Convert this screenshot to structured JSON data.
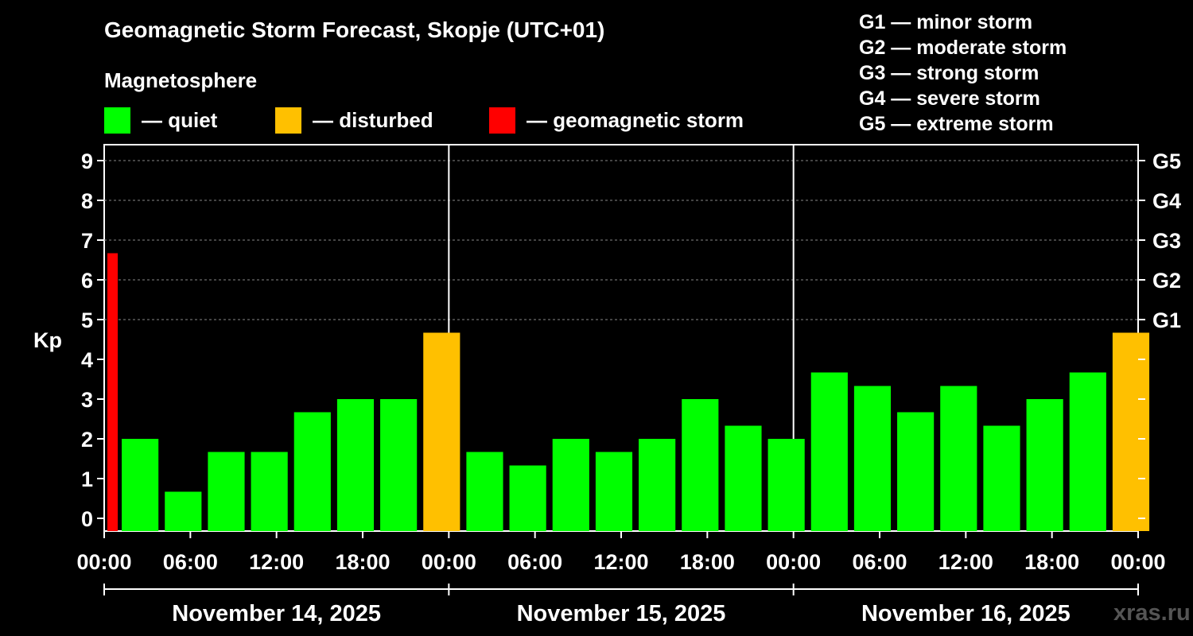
{
  "title": "Geomagnetic Storm Forecast, Skopje (UTC+01)",
  "magnetosphere": {
    "title": "Magnetosphere",
    "items": [
      {
        "label": "— quiet",
        "color": "#00ff00"
      },
      {
        "label": "— disturbed",
        "color": "#ffc000"
      },
      {
        "label": "— geomagnetic storm",
        "color": "#ff0000"
      }
    ]
  },
  "g_legend": [
    "G1 — minor storm",
    "G2 — moderate storm",
    "G3 — strong storm",
    "G4 — severe storm",
    "G5 — extreme storm"
  ],
  "watermark": "xras.ru",
  "chart_data": {
    "type": "bar",
    "ylabel": "Kp",
    "ylim": [
      0,
      9
    ],
    "y_ticks": [
      0,
      1,
      2,
      3,
      4,
      5,
      6,
      7,
      8,
      9
    ],
    "right_ticks": [
      {
        "kp": 5,
        "label": "G1"
      },
      {
        "kp": 6,
        "label": "G2"
      },
      {
        "kp": 7,
        "label": "G3"
      },
      {
        "kp": 8,
        "label": "G4"
      },
      {
        "kp": 9,
        "label": "G5"
      }
    ],
    "x_tick_labels": [
      "00:00",
      "06:00",
      "12:00",
      "18:00",
      "00:00",
      "06:00",
      "12:00",
      "18:00",
      "00:00",
      "06:00",
      "12:00",
      "18:00",
      "00:00"
    ],
    "days": [
      "November 14, 2025",
      "November 15, 2025",
      "November 16, 2025"
    ],
    "grid": "dashed horizontal at 5–9",
    "bars": [
      {
        "start_hour": 0,
        "kp": 6.67,
        "status": "storm"
      },
      {
        "start_hour": 1,
        "kp": 2.0,
        "status": "quiet"
      },
      {
        "start_hour": 4,
        "kp": 0.67,
        "status": "quiet"
      },
      {
        "start_hour": 7,
        "kp": 1.67,
        "status": "quiet"
      },
      {
        "start_hour": 10,
        "kp": 1.67,
        "status": "quiet"
      },
      {
        "start_hour": 13,
        "kp": 2.67,
        "status": "quiet"
      },
      {
        "start_hour": 16,
        "kp": 3.0,
        "status": "quiet"
      },
      {
        "start_hour": 19,
        "kp": 3.0,
        "status": "quiet"
      },
      {
        "start_hour": 22,
        "kp": 4.67,
        "status": "disturbed"
      },
      {
        "start_hour": 25,
        "kp": 1.67,
        "status": "quiet"
      },
      {
        "start_hour": 28,
        "kp": 1.33,
        "status": "quiet"
      },
      {
        "start_hour": 31,
        "kp": 2.0,
        "status": "quiet"
      },
      {
        "start_hour": 34,
        "kp": 1.67,
        "status": "quiet"
      },
      {
        "start_hour": 37,
        "kp": 2.0,
        "status": "quiet"
      },
      {
        "start_hour": 40,
        "kp": 3.0,
        "status": "quiet"
      },
      {
        "start_hour": 43,
        "kp": 2.33,
        "status": "quiet"
      },
      {
        "start_hour": 46,
        "kp": 2.0,
        "status": "quiet"
      },
      {
        "start_hour": 49,
        "kp": 3.67,
        "status": "quiet"
      },
      {
        "start_hour": 52,
        "kp": 3.33,
        "status": "quiet"
      },
      {
        "start_hour": 55,
        "kp": 2.67,
        "status": "quiet"
      },
      {
        "start_hour": 58,
        "kp": 3.33,
        "status": "quiet"
      },
      {
        "start_hour": 61,
        "kp": 2.33,
        "status": "quiet"
      },
      {
        "start_hour": 64,
        "kp": 3.0,
        "status": "quiet"
      },
      {
        "start_hour": 67,
        "kp": 3.67,
        "status": "quiet"
      },
      {
        "start_hour": 70,
        "kp": 4.67,
        "status": "disturbed"
      }
    ],
    "x_range_hours": [
      0,
      72
    ]
  }
}
